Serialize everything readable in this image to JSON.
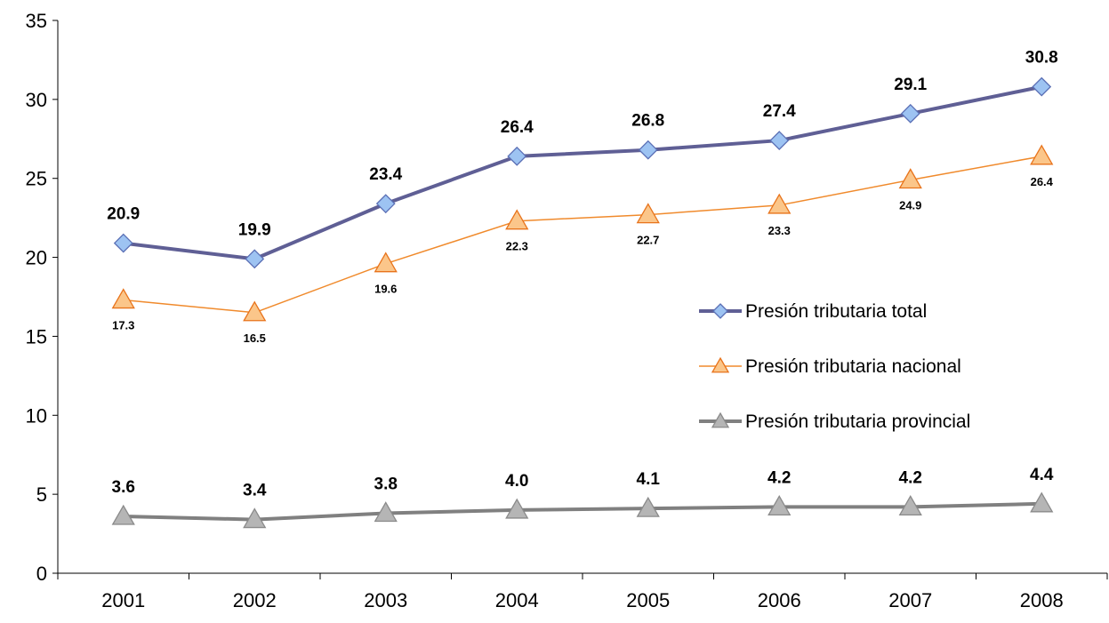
{
  "chart_data": {
    "type": "line",
    "x": [
      "2001",
      "2002",
      "2003",
      "2004",
      "2005",
      "2006",
      "2007",
      "2008"
    ],
    "ylim": [
      0,
      35
    ],
    "yticks": [
      0,
      5,
      10,
      15,
      20,
      25,
      30,
      35
    ],
    "grid": false,
    "legend_position": "right-middle",
    "series": [
      {
        "name": "Presión tributaria total",
        "values": [
          20.9,
          19.9,
          23.4,
          26.4,
          26.8,
          27.4,
          29.1,
          30.8
        ],
        "labels": [
          "20.9",
          "19.9",
          "23.4",
          "26.4",
          "26.8",
          "27.4",
          "29.1",
          "30.8"
        ],
        "color": "#5f5f95",
        "marker_color": "#9dc3f2",
        "marker": "diamond"
      },
      {
        "name": "Presión tributaria nacional",
        "values": [
          17.3,
          16.5,
          19.6,
          22.3,
          22.7,
          23.3,
          24.9,
          26.4
        ],
        "labels": [
          "17.3",
          "16.5",
          "19.6",
          "22.3",
          "22.7",
          "23.3",
          "24.9",
          "26.4"
        ],
        "color": "#f08a2c",
        "marker_color": "#fbc68a",
        "marker": "triangle"
      },
      {
        "name": "Presión tributaria provincial",
        "values": [
          3.6,
          3.4,
          3.8,
          4.0,
          4.1,
          4.2,
          4.2,
          4.4
        ],
        "labels": [
          "3.6",
          "3.4",
          "3.8",
          "4.0",
          "4.1",
          "4.2",
          "4.2",
          "4.4"
        ],
        "color": "#808080",
        "marker_color": "#b5b5b5",
        "marker": "triangle"
      }
    ]
  }
}
